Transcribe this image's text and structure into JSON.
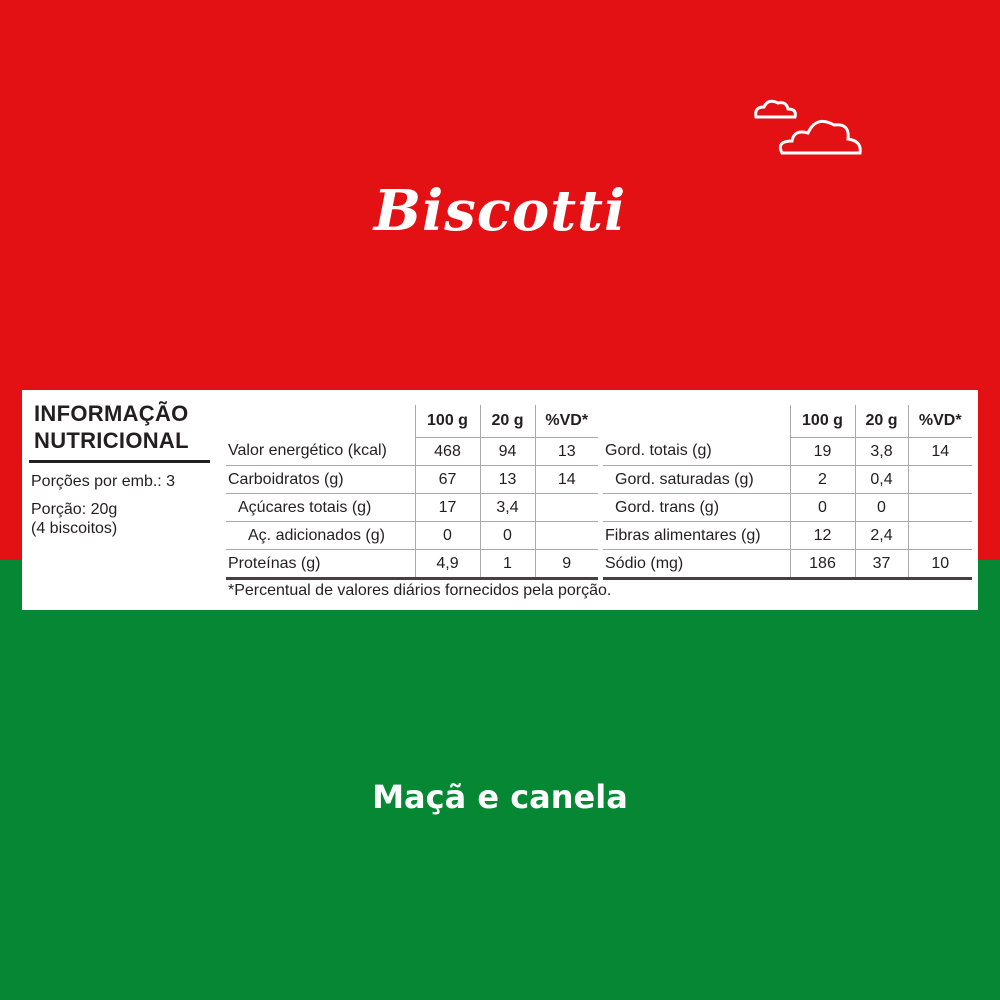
{
  "brand": "Biscotti",
  "flavor": "Maçã e canela",
  "colors": {
    "top": "#e41114",
    "bottom": "#058733",
    "text": "#ffffff"
  },
  "nutrition": {
    "title_line1": "INFORMAÇÃO",
    "title_line2": "NUTRICIONAL",
    "servings": "Porções por emb.: 3",
    "portion": "Porção: 20g",
    "portion_detail": "(4 biscoitos)",
    "headers": [
      "100 g",
      "20 g",
      "%VD*"
    ],
    "left_rows": [
      {
        "label": "Valor energético (kcal)",
        "v100": "468",
        "v20": "94",
        "vd": "13"
      },
      {
        "label": "Carboidratos (g)",
        "v100": "67",
        "v20": "13",
        "vd": "14"
      },
      {
        "label": "Açúcares totais (g)",
        "v100": "17",
        "v20": "3,4",
        "vd": ""
      },
      {
        "label": "Aç. adicionados (g)",
        "v100": "0",
        "v20": "0",
        "vd": ""
      },
      {
        "label": "Proteínas (g)",
        "v100": "4,9",
        "v20": "1",
        "vd": "9"
      }
    ],
    "right_rows": [
      {
        "label": "Gord. totais (g)",
        "v100": "19",
        "v20": "3,8",
        "vd": "14"
      },
      {
        "label": "Gord. saturadas (g)",
        "v100": "2",
        "v20": "0,4",
        "vd": ""
      },
      {
        "label": "Gord. trans (g)",
        "v100": "0",
        "v20": "0",
        "vd": ""
      },
      {
        "label": "Fibras alimentares (g)",
        "v100": "12",
        "v20": "2,4",
        "vd": ""
      },
      {
        "label": "Sódio (mg)",
        "v100": "186",
        "v20": "37",
        "vd": "10"
      }
    ],
    "footnote": "*Percentual de valores diários fornecidos pela porção."
  }
}
